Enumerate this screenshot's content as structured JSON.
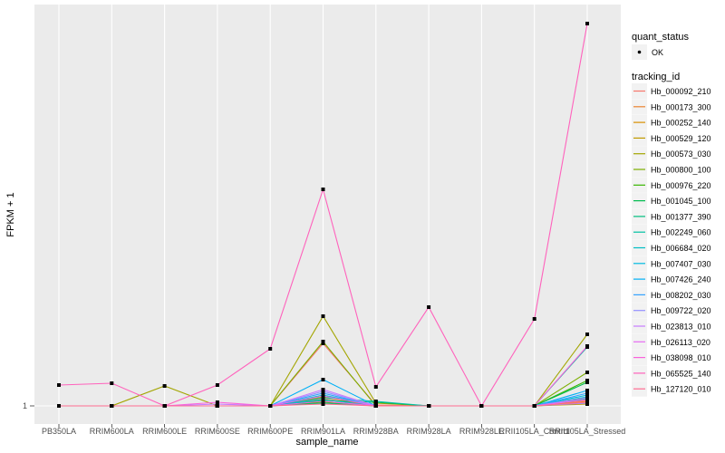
{
  "chart_data": {
    "type": "line",
    "xlabel": "sample_name",
    "ylabel": "FPKM + 1",
    "y_ticks": [
      "1"
    ],
    "ylim": [
      -1,
      45.3
    ],
    "categories": [
      "PB350LA",
      "RRIM600LA",
      "RRIM600LE",
      "RRIM600SE",
      "RRIM600PE",
      "RRIM901LA",
      "RRIM928BA",
      "RRIM928LA",
      "RRIM928LE",
      "RRII105LA_Control",
      "RRII105LA_Stressed"
    ],
    "legend_position": "right",
    "shape_legend": {
      "title": "quant_status",
      "items": [
        "OK"
      ]
    },
    "color_legend_title": "tracking_id",
    "series": [
      {
        "name": "Hb_000092_210",
        "color": "#F8766D",
        "values": [
          1,
          1,
          1,
          1,
          1,
          7.9,
          1.1,
          1,
          1,
          1,
          1.6
        ]
      },
      {
        "name": "Hb_000173_300",
        "color": "#EA8331",
        "values": [
          1,
          1,
          1,
          1,
          1,
          1.8,
          1,
          1,
          1,
          1,
          1.5
        ]
      },
      {
        "name": "Hb_000252_140",
        "color": "#D89000",
        "values": [
          1,
          1,
          1,
          1,
          1,
          2.0,
          1,
          1,
          1,
          1,
          1.3
        ]
      },
      {
        "name": "Hb_000529_120",
        "color": "#C09B00",
        "values": [
          1,
          1,
          1,
          1,
          1,
          1.5,
          1,
          1,
          1,
          1,
          1.2
        ]
      },
      {
        "name": "Hb_000573_030",
        "color": "#A3A500",
        "values": [
          1,
          1,
          3.2,
          1,
          1,
          10.9,
          1.3,
          1,
          1,
          1,
          8.9
        ]
      },
      {
        "name": "Hb_000800_100",
        "color": "#7CAE00",
        "values": [
          1,
          1,
          1,
          1,
          1,
          8.1,
          1,
          1,
          1,
          1,
          4.7
        ]
      },
      {
        "name": "Hb_000976_220",
        "color": "#39B600",
        "values": [
          1,
          1,
          1,
          1,
          1,
          1.4,
          1,
          1,
          1,
          1,
          3.8
        ]
      },
      {
        "name": "Hb_001045_100",
        "color": "#00BB4E",
        "values": [
          1,
          1,
          1,
          1,
          1,
          1.6,
          1.4,
          1,
          1,
          1,
          3.6
        ]
      },
      {
        "name": "Hb_001377_390",
        "color": "#00BF7D",
        "values": [
          1,
          1,
          1,
          1,
          1,
          1.3,
          1,
          1,
          1,
          1,
          1.8
        ]
      },
      {
        "name": "Hb_002249_060",
        "color": "#00C1A3",
        "values": [
          1,
          1,
          1,
          1,
          1,
          1.9,
          1.5,
          1,
          1,
          1,
          7.5
        ]
      },
      {
        "name": "Hb_006684_020",
        "color": "#00BFC4",
        "values": [
          1,
          1,
          1,
          1,
          1,
          2.2,
          1,
          1,
          1,
          1,
          2.0
        ]
      },
      {
        "name": "Hb_007407_030",
        "color": "#00BAE0",
        "values": [
          1,
          1,
          1,
          1,
          1,
          1.7,
          1,
          1,
          1,
          1,
          2.2
        ]
      },
      {
        "name": "Hb_007426_240",
        "color": "#00B0F6",
        "values": [
          1,
          1,
          1,
          1,
          1,
          3.9,
          1,
          1,
          1,
          1,
          2.7
        ]
      },
      {
        "name": "Hb_008202_030",
        "color": "#35A2FF",
        "values": [
          1,
          1,
          1,
          1,
          1,
          2.4,
          1,
          1,
          1,
          1,
          2.4
        ]
      },
      {
        "name": "Hb_009722_020",
        "color": "#9590FF",
        "values": [
          1,
          1,
          1,
          1,
          1,
          2.6,
          1,
          1,
          1,
          1,
          1.3
        ]
      },
      {
        "name": "Hb_023813_010",
        "color": "#C77CFF",
        "values": [
          1,
          1,
          1,
          1.2,
          1,
          2.8,
          1,
          1,
          1,
          1,
          1.9
        ]
      },
      {
        "name": "Hb_026113_020",
        "color": "#E76BF3",
        "values": [
          1,
          1,
          1,
          1,
          1,
          2.1,
          1,
          1,
          1,
          1,
          1.7
        ]
      },
      {
        "name": "Hb_038098_010",
        "color": "#FA62DB",
        "values": [
          1,
          1,
          1,
          1.4,
          1,
          1.5,
          1,
          1,
          1,
          1,
          7.6
        ]
      },
      {
        "name": "Hb_065525_140",
        "color": "#FF62BC",
        "values": [
          3.3,
          3.5,
          1,
          3.3,
          7.3,
          24.9,
          3.1,
          11.9,
          1,
          10.6,
          43.2
        ]
      },
      {
        "name": "Hb_127120_010",
        "color": "#FF6C91",
        "values": [
          1,
          1,
          1,
          1,
          1,
          1.2,
          1,
          1,
          1,
          1,
          1.4
        ]
      }
    ]
  }
}
